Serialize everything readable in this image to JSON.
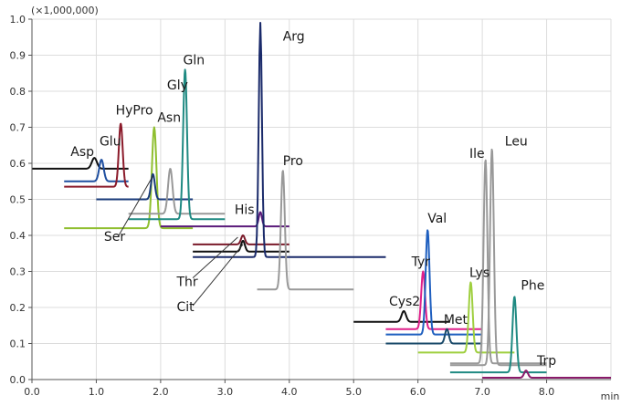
{
  "chart_data": {
    "type": "line",
    "title": "",
    "xlabel": "",
    "ylabel": "",
    "x_unit": "min",
    "y_multiplier": "(×1,000,000)",
    "xlim": [
      0,
      9.0
    ],
    "ylim": [
      0,
      1.0
    ],
    "x_ticks": [
      0.0,
      1.0,
      2.0,
      3.0,
      4.0,
      5.0,
      6.0,
      7.0,
      8.0
    ],
    "x_tick_labels": [
      "0.0",
      "1.0",
      "2.0",
      "3.0",
      "4.0",
      "5.0",
      "6.0",
      "7.0",
      "8.0"
    ],
    "y_ticks": [
      0.0,
      0.1,
      0.2,
      0.3,
      0.4,
      0.5,
      0.6,
      0.7,
      0.8,
      0.9,
      1.0
    ],
    "y_tick_labels": [
      "0.0",
      "0.1",
      "0.2",
      "0.3",
      "0.4",
      "0.5",
      "0.6",
      "0.7",
      "0.8",
      "0.9",
      "1.0"
    ],
    "grid": true,
    "legend": "none",
    "series": [
      {
        "name": "Asp",
        "color": "#111111",
        "baseline": 0.585,
        "start": 0.0,
        "end": 1.5,
        "peak_x": 0.97,
        "peak_y": 0.615,
        "width": 0.04
      },
      {
        "name": "Glu",
        "color": "#1f4fa0",
        "baseline": 0.55,
        "start": 0.5,
        "end": 1.5,
        "peak_x": 1.08,
        "peak_y": 0.61,
        "width": 0.035
      },
      {
        "name": "HyPro",
        "color": "#8b1a2a",
        "baseline": 0.535,
        "start": 0.5,
        "end": 1.5,
        "peak_x": 1.38,
        "peak_y": 0.71,
        "width": 0.03
      },
      {
        "name": "Asn",
        "color": "#8fbf2f",
        "baseline": 0.42,
        "start": 0.5,
        "end": 2.5,
        "peak_x": 1.9,
        "peak_y": 0.7,
        "width": 0.035
      },
      {
        "name": "Ser",
        "color": "#1a3b7a",
        "baseline": 0.5,
        "start": 1.0,
        "end": 2.5,
        "peak_x": 1.88,
        "peak_y": 0.57,
        "width": 0.03
      },
      {
        "name": "Gly",
        "color": "#999999",
        "baseline": 0.46,
        "start": 1.5,
        "end": 3.0,
        "peak_x": 2.15,
        "peak_y": 0.585,
        "width": 0.035
      },
      {
        "name": "Gln",
        "color": "#1f8a82",
        "baseline": 0.445,
        "start": 1.5,
        "end": 3.0,
        "peak_x": 2.38,
        "peak_y": 0.86,
        "width": 0.03
      },
      {
        "name": "His",
        "color": "#5a1a7a",
        "baseline": 0.425,
        "start": 2.0,
        "end": 4.0,
        "peak_x": 3.55,
        "peak_y": 0.465,
        "width": 0.025
      },
      {
        "name": "Thr",
        "color": "#7a1a2a",
        "baseline": 0.375,
        "start": 2.5,
        "end": 4.0,
        "peak_x": 3.28,
        "peak_y": 0.4,
        "width": 0.03
      },
      {
        "name": "Cit",
        "color": "#111111",
        "baseline": 0.355,
        "start": 2.5,
        "end": 4.0,
        "peak_x": 3.28,
        "peak_y": 0.385,
        "width": 0.03
      },
      {
        "name": "Arg",
        "color": "#1a2a6a",
        "baseline": 0.34,
        "start": 2.5,
        "end": 5.5,
        "peak_x": 3.55,
        "peak_y": 0.99,
        "width": 0.025
      },
      {
        "name": "Pro",
        "color": "#999999",
        "baseline": 0.25,
        "start": 3.5,
        "end": 5.0,
        "peak_x": 3.9,
        "peak_y": 0.58,
        "width": 0.03
      },
      {
        "name": "Cys2",
        "color": "#111111",
        "baseline": 0.16,
        "start": 5.0,
        "end": 6.5,
        "peak_x": 5.78,
        "peak_y": 0.19,
        "width": 0.035
      },
      {
        "name": "Tyr",
        "color": "#e0208a",
        "baseline": 0.14,
        "start": 5.5,
        "end": 7.0,
        "peak_x": 6.08,
        "peak_y": 0.3,
        "width": 0.03
      },
      {
        "name": "Val",
        "color": "#1f5fbf",
        "baseline": 0.125,
        "start": 5.5,
        "end": 7.0,
        "peak_x": 6.15,
        "peak_y": 0.415,
        "width": 0.03
      },
      {
        "name": "Met",
        "color": "#1a4a6a",
        "baseline": 0.1,
        "start": 5.5,
        "end": 7.0,
        "peak_x": 6.45,
        "peak_y": 0.14,
        "width": 0.03
      },
      {
        "name": "Lys",
        "color": "#9fcf3f",
        "baseline": 0.075,
        "start": 6.0,
        "end": 7.5,
        "peak_x": 6.82,
        "peak_y": 0.27,
        "width": 0.03
      },
      {
        "name": "Ile",
        "color": "#999999",
        "baseline": 0.045,
        "start": 6.5,
        "end": 8.0,
        "peak_x": 7.05,
        "peak_y": 0.61,
        "width": 0.03
      },
      {
        "name": "Leu",
        "color": "#999999",
        "baseline": 0.04,
        "start": 6.5,
        "end": 8.0,
        "peak_x": 7.15,
        "peak_y": 0.64,
        "width": 0.03
      },
      {
        "name": "Phe",
        "color": "#1f8a82",
        "baseline": 0.02,
        "start": 6.5,
        "end": 8.0,
        "peak_x": 7.5,
        "peak_y": 0.23,
        "width": 0.03
      },
      {
        "name": "Trp",
        "color": "#8a1a6a",
        "baseline": 0.005,
        "start": 7.0,
        "end": 9.0,
        "peak_x": 7.68,
        "peak_y": 0.025,
        "width": 0.03
      }
    ],
    "annotations": [
      {
        "text": "Asp",
        "target": "Asp",
        "x": 0.6,
        "y": 0.62
      },
      {
        "text": "Glu",
        "target": "Glu",
        "x": 1.05,
        "y": 0.65
      },
      {
        "text": "HyPro",
        "target": "HyPro",
        "x": 1.3,
        "y": 0.735
      },
      {
        "text": "Asn",
        "target": "Asn",
        "x": 1.95,
        "y": 0.715
      },
      {
        "text": "Ser",
        "target": "Ser",
        "x": 1.12,
        "y": 0.385,
        "leader": [
          1.35,
          0.4,
          1.88,
          0.565
        ]
      },
      {
        "text": "Gly",
        "target": "Gly",
        "x": 2.1,
        "y": 0.805
      },
      {
        "text": "Gln",
        "target": "Gln",
        "x": 2.35,
        "y": 0.875
      },
      {
        "text": "Arg",
        "target": "Arg",
        "x": 3.9,
        "y": 0.94
      },
      {
        "text": "Pro",
        "target": "Pro",
        "x": 3.9,
        "y": 0.595
      },
      {
        "text": "His",
        "target": "His",
        "x": 3.15,
        "y": 0.46
      },
      {
        "text": "Thr",
        "target": "Thr",
        "x": 2.25,
        "y": 0.26,
        "leader": [
          2.5,
          0.282,
          3.2,
          0.395
        ]
      },
      {
        "text": "Cit",
        "target": "Cit",
        "x": 2.25,
        "y": 0.19,
        "leader": [
          2.5,
          0.205,
          3.28,
          0.375
        ]
      },
      {
        "text": "Cys2",
        "target": "Cys2",
        "x": 5.55,
        "y": 0.205
      },
      {
        "text": "Tyr",
        "target": "Tyr",
        "x": 5.9,
        "y": 0.315
      },
      {
        "text": "Val",
        "target": "Val",
        "x": 6.15,
        "y": 0.435
      },
      {
        "text": "Met",
        "target": "Met",
        "x": 6.4,
        "y": 0.155
      },
      {
        "text": "Lys",
        "target": "Lys",
        "x": 6.8,
        "y": 0.285
      },
      {
        "text": "Ile",
        "target": "Ile",
        "x": 6.8,
        "y": 0.615
      },
      {
        "text": "Leu",
        "target": "Leu",
        "x": 7.35,
        "y": 0.65
      },
      {
        "text": "Phe",
        "target": "Phe",
        "x": 7.6,
        "y": 0.25
      },
      {
        "text": "Trp",
        "target": "Trp",
        "x": 7.85,
        "y": 0.04
      }
    ]
  }
}
